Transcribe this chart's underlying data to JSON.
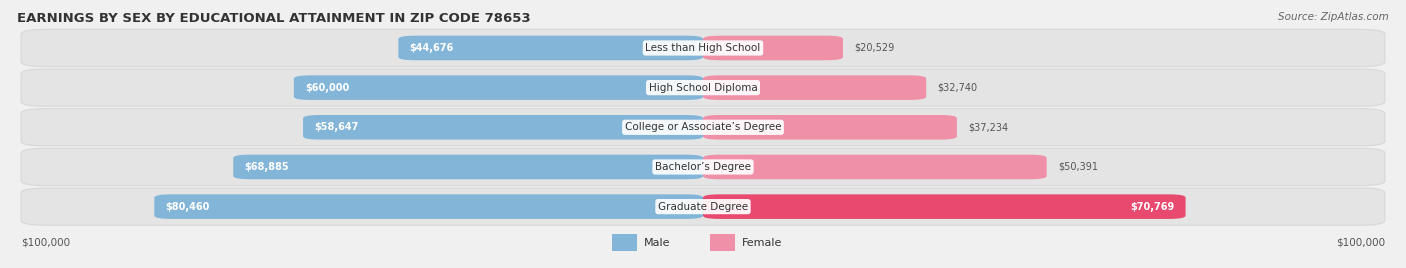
{
  "title": "EARNINGS BY SEX BY EDUCATIONAL ATTAINMENT IN ZIP CODE 78653",
  "source": "Source: ZipAtlas.com",
  "categories": [
    "Less than High School",
    "High School Diploma",
    "College or Associate’s Degree",
    "Bachelor’s Degree",
    "Graduate Degree"
  ],
  "male_values": [
    44676,
    60000,
    58647,
    68885,
    80460
  ],
  "female_values": [
    20529,
    32740,
    37234,
    50391,
    70769
  ],
  "male_color": "#82b5d8",
  "female_color": "#f090a8",
  "female_last_color": "#e8496e",
  "background_color": "#f0f0f0",
  "row_bg_color": "#e4e4e4",
  "max_value": 100000,
  "title_fontsize": 9.5,
  "label_fontsize": 7.5,
  "value_fontsize": 7.0,
  "source_fontsize": 7.5,
  "axis_label_fontsize": 7.5
}
